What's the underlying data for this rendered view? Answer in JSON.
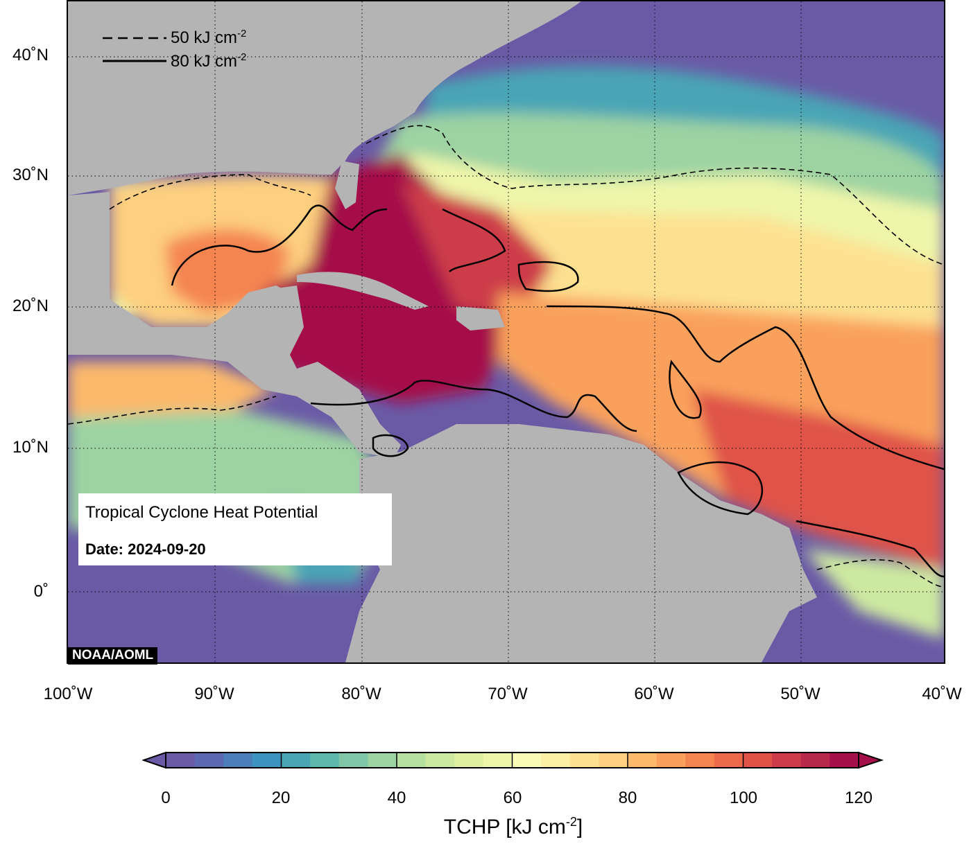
{
  "map": {
    "title": "Tropical Cyclone Heat Potential",
    "date_label": "Date: 2024-09-20",
    "credit": "NOAA/AOML",
    "legend": {
      "dashed_label": "50 kJ cm",
      "dashed_exp": "-2",
      "solid_label": "80 kJ cm",
      "solid_exp": "-2"
    },
    "lat_labels": [
      "40˚N",
      "30˚N",
      "20˚N",
      "10˚N",
      "0˚"
    ],
    "lon_labels": [
      "100˚W",
      "90˚W",
      "80˚W",
      "70˚W",
      "60˚W",
      "50˚W",
      "40˚W"
    ],
    "land_color": "#b4b4b4",
    "ocean_cold_color": "#6a5aa6",
    "ocean_hot_color": "#a50f4a"
  },
  "colorbar": {
    "title": "TCHP [kJ cm",
    "title_exp": "-2",
    "title_close": "]",
    "min": 0,
    "max": 120,
    "step": 5,
    "tick_labels": [
      "0",
      "20",
      "40",
      "60",
      "80",
      "100",
      "120"
    ],
    "colors": [
      "#6a5aa6",
      "#5c69b0",
      "#4c7fb9",
      "#3d94bf",
      "#4aa5b5",
      "#5fb6ab",
      "#7ec6a5",
      "#9dd3a2",
      "#b6e0a0",
      "#cde9a0",
      "#e0f0a3",
      "#eef6aa",
      "#fbfbb5",
      "#fdf0a4",
      "#fde191",
      "#fdcf7f",
      "#fcb96c",
      "#f9a15c",
      "#f48551",
      "#ec6a4a",
      "#df5248",
      "#cd3d49",
      "#b8294b",
      "#a50f4a"
    ],
    "under_color": "#6a5aa6",
    "over_color": "#a50f4a"
  }
}
